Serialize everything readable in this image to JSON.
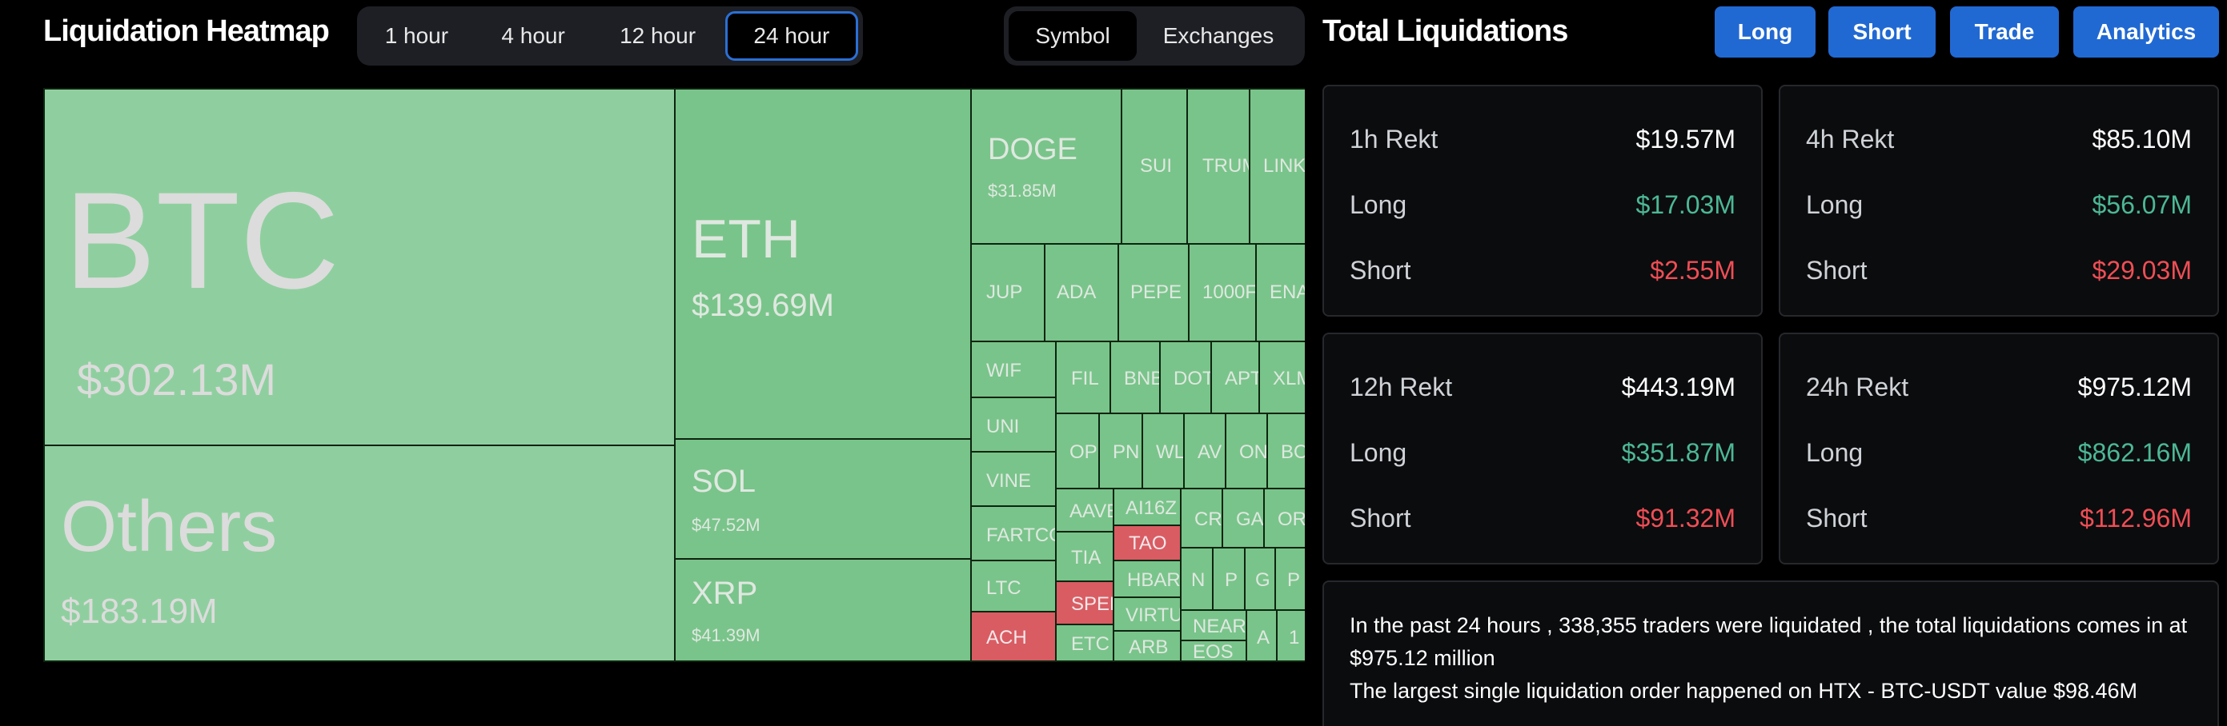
{
  "heatmap": {
    "title": "Liquidation Heatmap",
    "time_options": [
      "1 hour",
      "4 hour",
      "12 hour",
      "24 hour"
    ],
    "time_active": "24 hour",
    "view_options": [
      "Symbol",
      "Exchanges"
    ],
    "view_active": "Symbol",
    "tiles": {
      "btc": {
        "symbol": "BTC",
        "value": "$302.13M"
      },
      "others": {
        "symbol": "Others",
        "value": "$183.19M"
      },
      "eth": {
        "symbol": "ETH",
        "value": "$139.69M"
      },
      "sol": {
        "symbol": "SOL",
        "value": "$47.52M"
      },
      "xrp": {
        "symbol": "XRP",
        "value": "$41.39M"
      },
      "doge": {
        "symbol": "DOGE",
        "value": "$31.85M"
      },
      "sui": {
        "symbol": "SUI"
      },
      "trump": {
        "symbol": "TRUM"
      },
      "link": {
        "symbol": "LINK"
      },
      "jup": {
        "symbol": "JUP"
      },
      "ada": {
        "symbol": "ADA"
      },
      "pepe": {
        "symbol": "PEPE"
      },
      "k1000": {
        "symbol": "1000F"
      },
      "ena": {
        "symbol": "ENA"
      },
      "wif": {
        "symbol": "WIF"
      },
      "fil": {
        "symbol": "FIL"
      },
      "bnb": {
        "symbol": "BNB"
      },
      "dot": {
        "symbol": "DOT"
      },
      "apt": {
        "symbol": "APT"
      },
      "xlm": {
        "symbol": "XLM"
      },
      "uni": {
        "symbol": "UNI"
      },
      "op": {
        "symbol": "OP"
      },
      "pnut": {
        "symbol": "PN"
      },
      "wld": {
        "symbol": "WL"
      },
      "avax": {
        "symbol": "AV"
      },
      "ondo": {
        "symbol": "ON"
      },
      "bome": {
        "symbol": "BO"
      },
      "vine": {
        "symbol": "VINE"
      },
      "aave": {
        "symbol": "AAVE"
      },
      "ai16z": {
        "symbol": "AI16Z"
      },
      "crv": {
        "symbol": "CR"
      },
      "gala": {
        "symbol": "GA"
      },
      "ordi": {
        "symbol": "OR"
      },
      "fartcoin": {
        "symbol": "FARTCOIN"
      },
      "tia": {
        "symbol": "TIA"
      },
      "tao": {
        "symbol": "TAO"
      },
      "ltc": {
        "symbol": "LTC"
      },
      "spell": {
        "symbol": "SPELL"
      },
      "hbar": {
        "symbol": "HBAR"
      },
      "n1": {
        "symbol": "N"
      },
      "p1": {
        "symbol": "P"
      },
      "g1": {
        "symbol": "G"
      },
      "p2": {
        "symbol": "P"
      },
      "virtual": {
        "symbol": "VIRTU"
      },
      "near": {
        "symbol": "NEAR"
      },
      "ach": {
        "symbol": "ACH"
      },
      "etc": {
        "symbol": "ETC"
      },
      "arb": {
        "symbol": "ARB"
      },
      "eos": {
        "symbol": "EOS"
      },
      "a1": {
        "symbol": "A"
      },
      "one": {
        "symbol": "1"
      }
    }
  },
  "totals": {
    "title": "Total Liquidations",
    "buttons": {
      "long": "Long",
      "short": "Short",
      "trade": "Trade",
      "analytics": "Analytics"
    },
    "cards": [
      {
        "title": "1h Rekt",
        "total": "$19.57M",
        "long_label": "Long",
        "long": "$17.03M",
        "short_label": "Short",
        "short": "$2.55M"
      },
      {
        "title": "4h Rekt",
        "total": "$85.10M",
        "long_label": "Long",
        "long": "$56.07M",
        "short_label": "Short",
        "short": "$29.03M"
      },
      {
        "title": "12h Rekt",
        "total": "$443.19M",
        "long_label": "Long",
        "long": "$351.87M",
        "short_label": "Short",
        "short": "$91.32M"
      },
      {
        "title": "24h Rekt",
        "total": "$975.12M",
        "long_label": "Long",
        "long": "$862.16M",
        "short_label": "Short",
        "short": "$112.96M"
      }
    ],
    "summary_line1": "In the past 24 hours , 338,355 traders were liquidated , the total liquidations comes in at $975.12 million",
    "summary_line2": "The largest single liquidation order happened on HTX - BTC-USDT value $98.46M"
  },
  "colors": {
    "long": "#4cb895",
    "short": "#ef4e55",
    "accent": "#2169d2",
    "tile_green": "#79c48a",
    "tile_red": "#d95c63"
  }
}
